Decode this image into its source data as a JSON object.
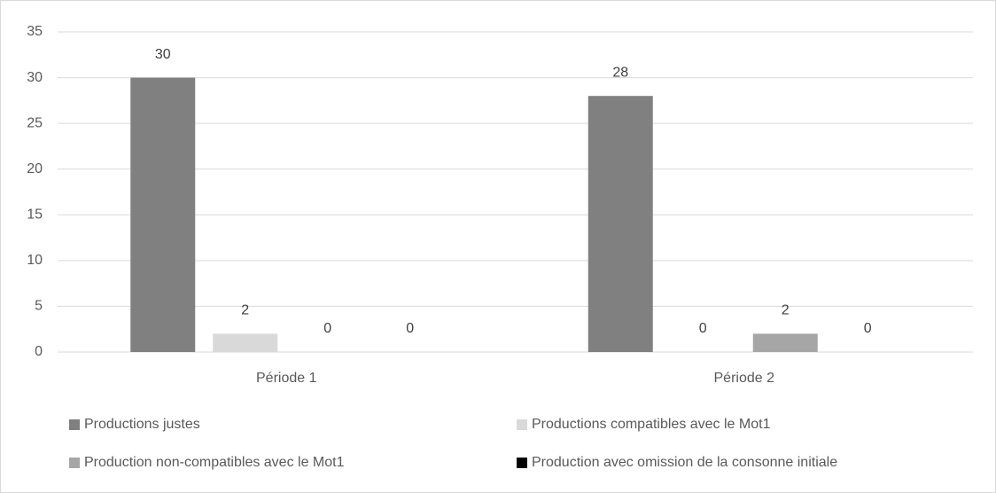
{
  "chart_data": {
    "type": "bar",
    "categories": [
      "Période 1",
      "Période 2"
    ],
    "series": [
      {
        "name": "Productions justes",
        "color": "#808080",
        "values": [
          30,
          28
        ]
      },
      {
        "name": "Productions compatibles avec le Mot1",
        "color": "#d9d9d9",
        "values": [
          2,
          0
        ]
      },
      {
        "name": "Production non-compatibles avec le Mot1",
        "color": "#a6a6a6",
        "values": [
          0,
          2
        ]
      },
      {
        "name": "Production avec omission de la consonne initiale",
        "color": "#000000",
        "values": [
          0,
          0
        ]
      }
    ],
    "ylim": [
      0,
      35
    ],
    "yticks": [
      0,
      5,
      10,
      15,
      20,
      25,
      30,
      35
    ],
    "grid": true
  }
}
